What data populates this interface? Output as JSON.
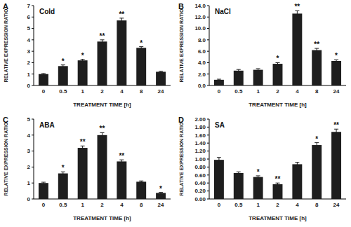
{
  "chart_data": [
    {
      "type": "bar",
      "panel_label": "A",
      "title": "Cold",
      "x_label": "TREATMENT TIME [h]",
      "y_label": "RELATIVE EXPRESSION RATIO",
      "categories": [
        "0",
        "0.5",
        "1",
        "2",
        "4",
        "8",
        "24"
      ],
      "values": [
        1.0,
        1.7,
        2.2,
        3.85,
        5.7,
        3.3,
        1.2
      ],
      "errors": [
        0.05,
        0.1,
        0.1,
        0.15,
        0.2,
        0.1,
        0.05
      ],
      "significance": [
        null,
        "*",
        "*",
        "**",
        "**",
        "*",
        null
      ],
      "color": "#1e1e1e",
      "ylim": [
        0,
        7
      ],
      "yticks": [
        0,
        1,
        2,
        3,
        4,
        5,
        6,
        7
      ]
    },
    {
      "type": "bar",
      "panel_label": "B",
      "title": "NaCl",
      "x_label": "TREATMENT TIME [h]",
      "y_label": "RELATIVE EXPRESSION RATIO",
      "categories": [
        "0",
        "0.5",
        "1",
        "2",
        "4",
        "8",
        "24"
      ],
      "values": [
        1.0,
        2.6,
        2.75,
        3.8,
        12.6,
        6.2,
        4.3
      ],
      "errors": [
        0.1,
        0.2,
        0.2,
        0.2,
        0.5,
        0.3,
        0.2
      ],
      "significance": [
        null,
        null,
        null,
        "*",
        "**",
        "**",
        "*"
      ],
      "color": "#1e1e1e",
      "ylim": [
        0,
        14
      ],
      "yticks": [
        {
          "value": 0,
          "label": "0.0"
        },
        {
          "value": 2,
          "label": "2.0"
        },
        {
          "value": 4,
          "label": "4.0"
        },
        {
          "value": 6,
          "label": "6.0"
        },
        {
          "value": 8,
          "label": "8.0"
        },
        {
          "value": 10,
          "label": "10.0"
        },
        {
          "value": 12,
          "label": "12.0"
        },
        {
          "value": 14,
          "label": "14.0"
        }
      ]
    },
    {
      "type": "bar",
      "panel_label": "C",
      "title": "ABA",
      "x_label": "TREATMENT TIME [h]",
      "y_label": "RELATIVE EXPRESSION RATIO",
      "categories": [
        "0",
        "0.5",
        "1",
        "2",
        "4",
        "8",
        "24"
      ],
      "values": [
        1.0,
        1.6,
        3.2,
        4.0,
        2.35,
        1.08,
        0.38
      ],
      "errors": [
        0.05,
        0.1,
        0.12,
        0.15,
        0.1,
        0.05,
        0.03
      ],
      "significance": [
        null,
        "*",
        "**",
        "**",
        "**",
        null,
        "*"
      ],
      "color": "#1e1e1e",
      "ylim": [
        0,
        5
      ],
      "yticks": [
        0,
        1,
        2,
        3,
        4,
        5
      ]
    },
    {
      "type": "bar",
      "panel_label": "D",
      "title": "SA",
      "x_label": "TREATMENT TIME [h]",
      "y_label": "RELATIVE EXPRESSION RATIO",
      "categories": [
        "0",
        "0.5",
        "1",
        "2",
        "4",
        "8",
        "24"
      ],
      "values": [
        0.98,
        0.65,
        0.55,
        0.37,
        0.87,
        1.35,
        1.68
      ],
      "errors": [
        0.06,
        0.03,
        0.03,
        0.03,
        0.05,
        0.06,
        0.07
      ],
      "significance": [
        null,
        null,
        "*",
        "**",
        null,
        "*",
        "**"
      ],
      "color": "#1e1e1e",
      "ylim": [
        0,
        2
      ],
      "yticks": [
        {
          "value": 0,
          "label": "0.00"
        },
        {
          "value": 0.2,
          "label": "0.20"
        },
        {
          "value": 0.4,
          "label": "0.40"
        },
        {
          "value": 0.6,
          "label": "0.60"
        },
        {
          "value": 0.8,
          "label": "0.80"
        },
        {
          "value": 1.0,
          "label": "1.00"
        },
        {
          "value": 1.2,
          "label": "1.20"
        },
        {
          "value": 1.4,
          "label": "1.40"
        },
        {
          "value": 1.6,
          "label": "1.60"
        },
        {
          "value": 1.8,
          "label": "1.80"
        },
        {
          "value": 2.0,
          "label": "2.00"
        }
      ]
    }
  ]
}
